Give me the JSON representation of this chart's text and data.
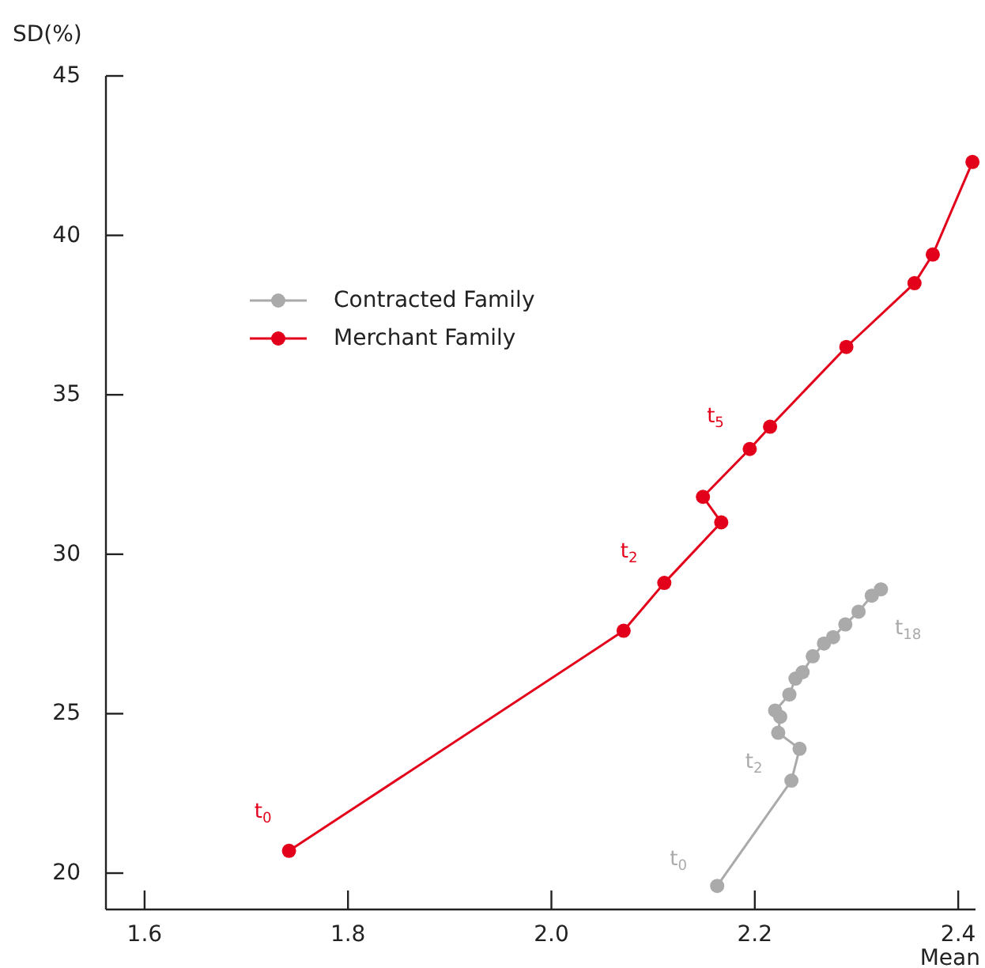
{
  "chart_data": {
    "type": "line",
    "xlabel": "Mean",
    "ylabel": "SD(%)",
    "xlim": [
      1.562,
      2.417
    ],
    "ylim": [
      18.86,
      45
    ],
    "xticks": [
      1.6,
      1.8,
      {
        "value": 2.0,
        "label": "2.0"
      },
      2.2,
      2.4
    ],
    "yticks": [
      20,
      25,
      30,
      35,
      40,
      45
    ],
    "marker": "circle",
    "legend": "top left",
    "grid": false,
    "series": [
      {
        "name": "Contracted Family",
        "color": "#aaaaaa",
        "x": [
          2.163,
          2.236,
          2.244,
          2.223,
          2.225,
          2.22,
          2.234,
          2.24,
          2.247,
          2.257,
          2.268,
          2.277,
          2.289,
          2.302,
          2.315,
          2.324
        ],
        "values": [
          19.6,
          22.9,
          23.9,
          24.4,
          24.9,
          25.1,
          25.6,
          26.1,
          26.3,
          26.8,
          27.2,
          27.4,
          27.8,
          28.2,
          28.7,
          28.9
        ]
      },
      {
        "name": "Merchant Family",
        "color": "#e2001a",
        "x": [
          1.742,
          2.071,
          2.111,
          2.167,
          2.149,
          2.195,
          2.215,
          2.29,
          2.357,
          2.375,
          2.414
        ],
        "values": [
          20.7,
          27.6,
          29.1,
          31.0,
          31.8,
          33.3,
          34.0,
          36.5,
          38.5,
          39.4,
          42.3
        ]
      }
    ],
    "annotations": [
      {
        "text": "t$_{0}$",
        "x": 1.742,
        "y": 20.7
      },
      {
        "text": "t$_{2}$",
        "x": 2.111,
        "y": 29.1
      },
      {
        "text": "t$_{5}$",
        "x": 2.195,
        "y": 33.3
      },
      {
        "text": "t$_{0}$",
        "x": 2.163,
        "y": 19.6
      },
      {
        "text": "t$_{2}$",
        "x": 2.244,
        "y": 23.9
      },
      {
        "text": "t$_{18}$",
        "x": 2.324,
        "y": 28.9
      }
    ]
  }
}
